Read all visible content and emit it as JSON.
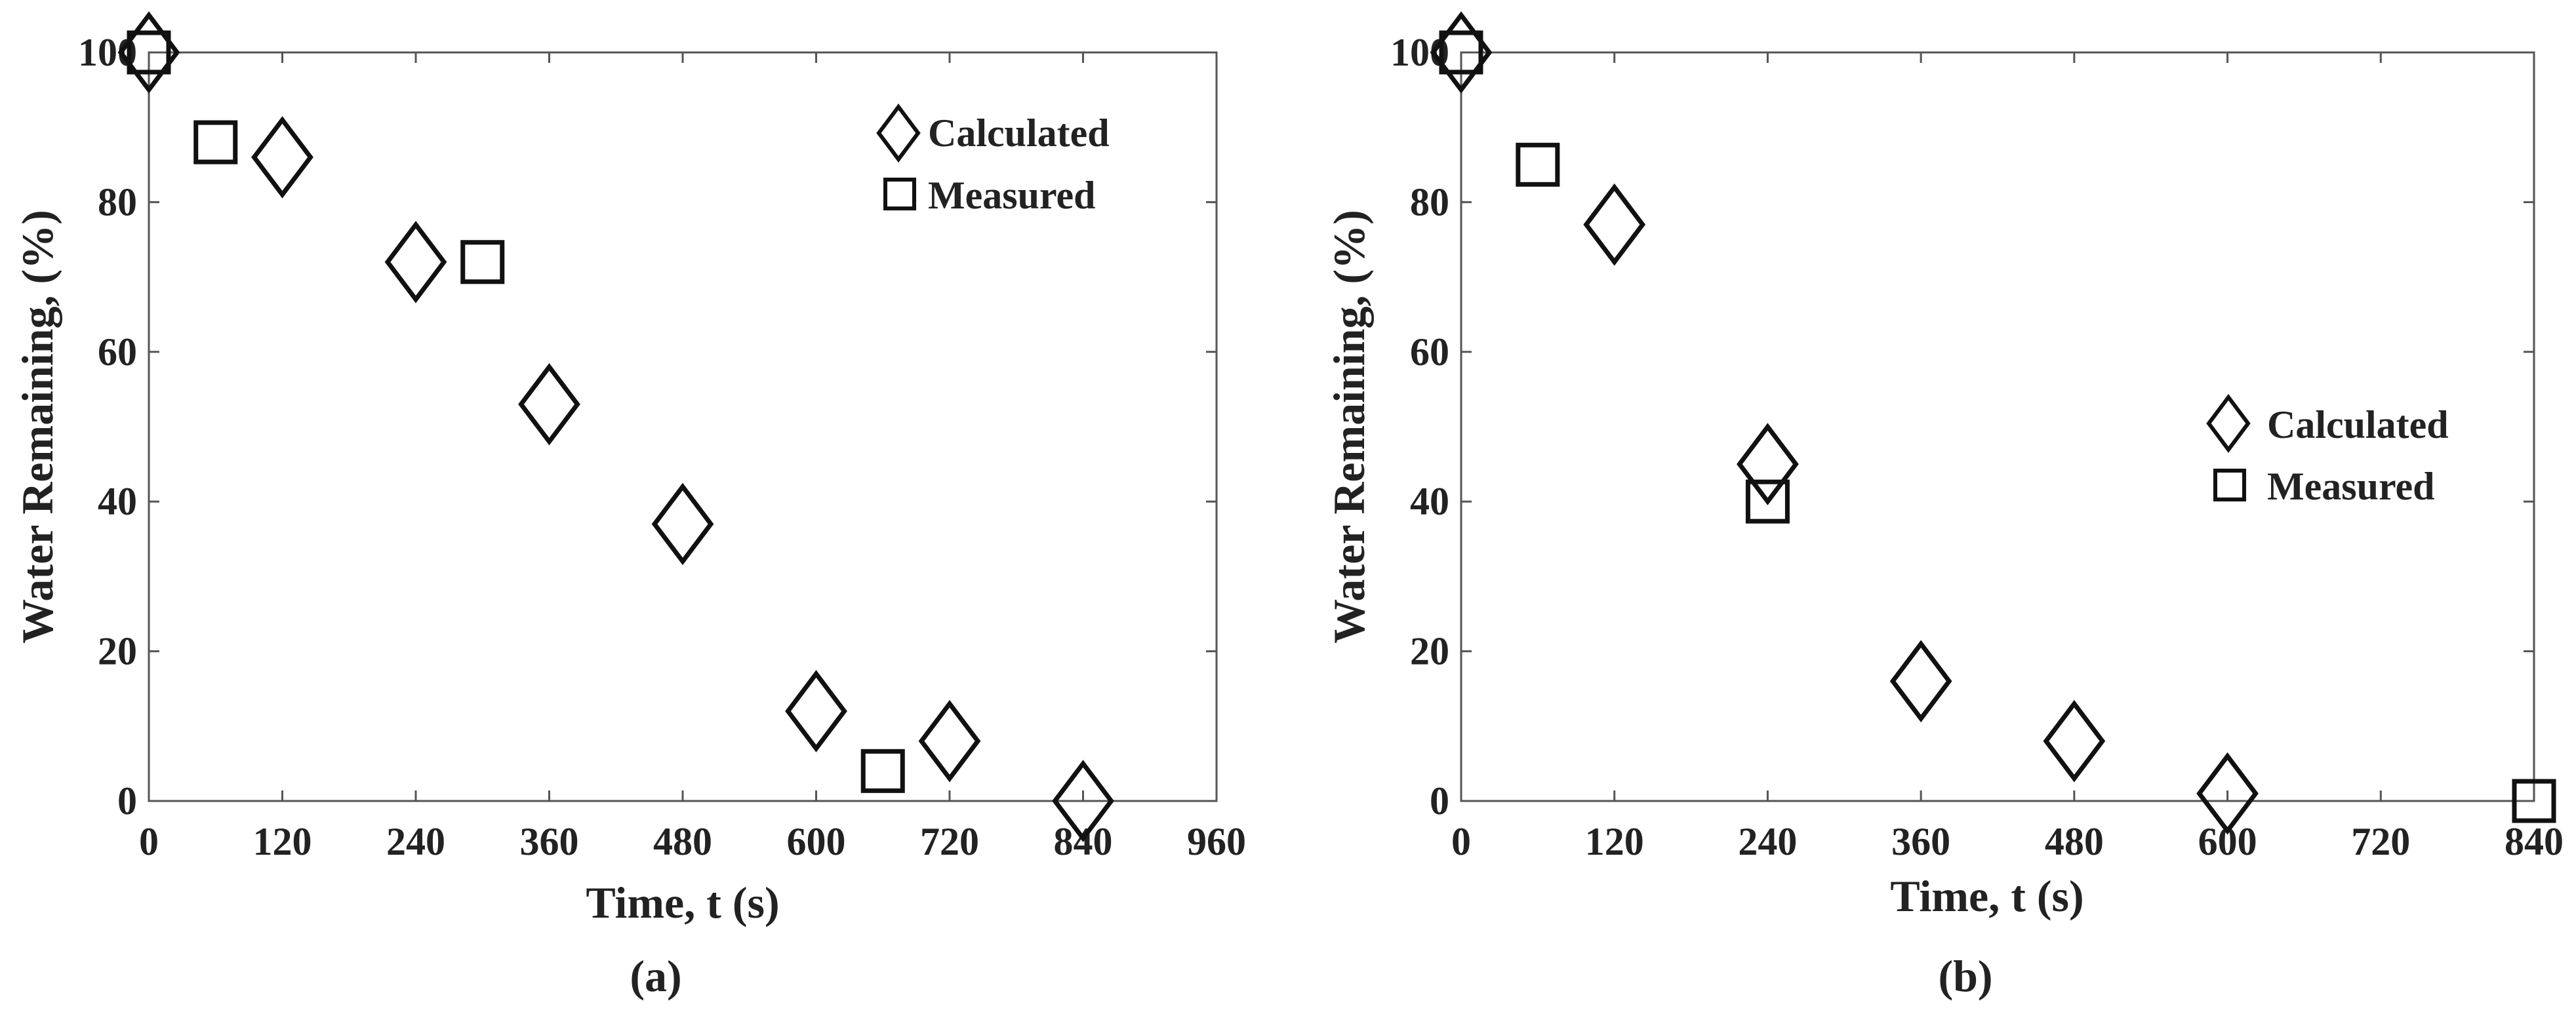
{
  "chart_data": [
    {
      "type": "scatter",
      "panel_label": "(a)",
      "xlabel": "Time, t (s)",
      "ylabel": "Water Remaining, (%)",
      "xlim": [
        0,
        960
      ],
      "ylim": [
        0,
        100
      ],
      "xticks": [
        "0",
        "120",
        "240",
        "360",
        "480",
        "600",
        "720",
        "840",
        "960"
      ],
      "yticks": [
        "0",
        "20",
        "40",
        "60",
        "80",
        "100"
      ],
      "legend_position": "top-right",
      "series": [
        {
          "name": "Calculated",
          "marker": "diamond",
          "x": [
            0,
            120,
            240,
            360,
            480,
            600,
            720,
            840
          ],
          "y": [
            100,
            86,
            72,
            53,
            37,
            12,
            8,
            0
          ]
        },
        {
          "name": "Measured",
          "marker": "square",
          "x": [
            0,
            60,
            300,
            660
          ],
          "y": [
            100,
            88,
            72,
            4
          ]
        }
      ]
    },
    {
      "type": "scatter",
      "panel_label": "(b)",
      "xlabel": "Time, t (s)",
      "ylabel": "Water Remaining, (%)",
      "xlim": [
        0,
        840
      ],
      "ylim": [
        0,
        100
      ],
      "xticks": [
        "0",
        "120",
        "240",
        "360",
        "480",
        "600",
        "720",
        "840"
      ],
      "yticks": [
        "0",
        "20",
        "40",
        "60",
        "80",
        "100"
      ],
      "legend_position": "center-right",
      "series": [
        {
          "name": "Calculated",
          "marker": "diamond",
          "x": [
            0,
            120,
            240,
            360,
            480,
            600
          ],
          "y": [
            100,
            77,
            45,
            16,
            8,
            1
          ]
        },
        {
          "name": "Measured",
          "marker": "square",
          "x": [
            0,
            60,
            240,
            840
          ],
          "y": [
            100,
            85,
            40,
            0
          ]
        }
      ]
    }
  ]
}
